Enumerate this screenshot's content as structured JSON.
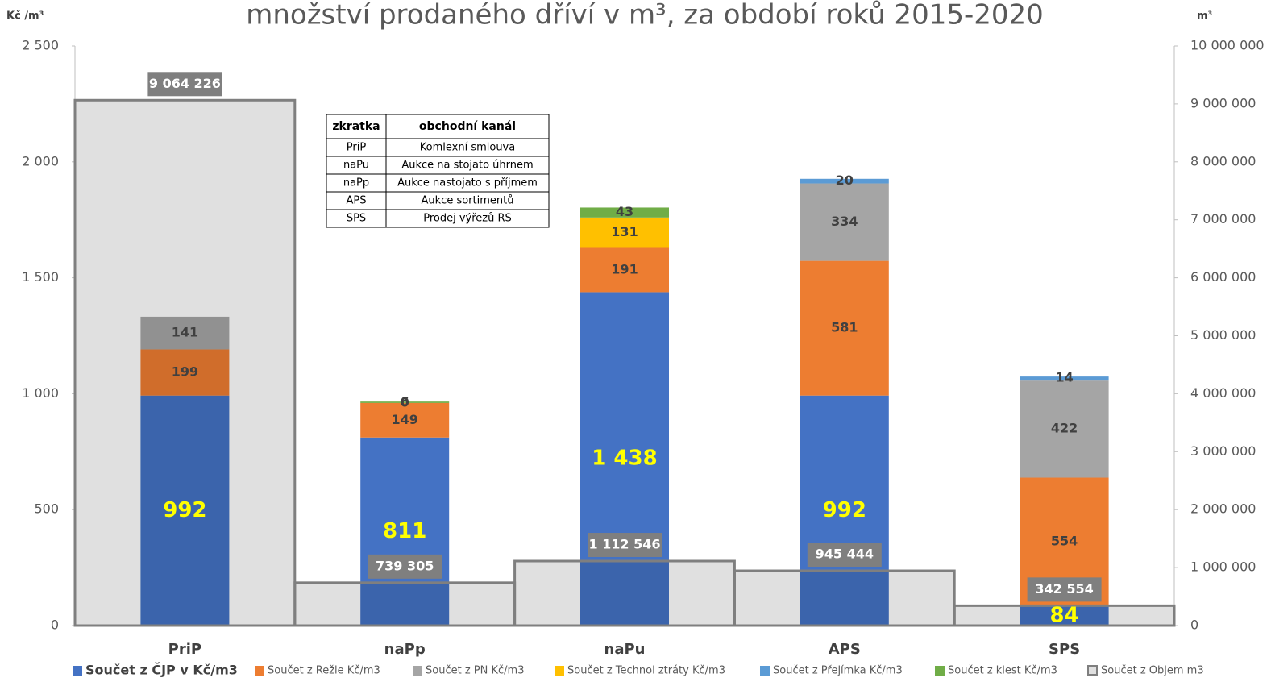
{
  "chart_data": {
    "type": "bar",
    "title": "množství prodaného dříví v m³, za období roků 2015-2020",
    "y_label": "Kč /m³",
    "y2_label": "m³",
    "categories": [
      "PriP",
      "naPp",
      "naPu",
      "APS",
      "SPS"
    ],
    "stacked": true,
    "series": [
      {
        "name": "Součet z ČJP v Kč/m3",
        "color": "#4472c4",
        "values": [
          992,
          811,
          1438,
          992,
          84
        ],
        "value_labels": [
          "992",
          "811",
          "1 438",
          "992",
          "84"
        ]
      },
      {
        "name": "Součet z Režie Kč/m3",
        "color": "#ed7d31",
        "values": [
          199,
          149,
          191,
          581,
          554
        ]
      },
      {
        "name": "Součet z PN Kč/m3",
        "color": "#a5a5a5",
        "values": [
          141,
          null,
          null,
          334,
          422
        ]
      },
      {
        "name": "Součet z Technol ztráty Kč/m3",
        "color": "#ffc000",
        "values": [
          null,
          null,
          131,
          null,
          null
        ]
      },
      {
        "name": "Součet z Přejímka Kč/m3",
        "color": "#5b9bd5",
        "values": [
          null,
          0,
          null,
          20,
          14
        ]
      },
      {
        "name": "Součet z klest Kč/m3",
        "color": "#70ad47",
        "values": [
          null,
          6,
          43,
          null,
          null
        ]
      },
      {
        "name": "Součet z Objem m3",
        "color": "#7f7f7f",
        "type": "step",
        "axis": "y2",
        "values": [
          9064226,
          739305,
          1112546,
          945444,
          342554
        ],
        "value_labels": [
          "9 064 226",
          "739 305",
          "1 112 546",
          "945 444",
          "342 554"
        ]
      }
    ],
    "ylim": [
      0,
      2500
    ],
    "yticks": [
      0,
      500,
      {
        "value": 1000,
        "label": "1 000"
      },
      {
        "value": 1500,
        "label": "1 500"
      },
      {
        "value": 2000,
        "label": "2 000"
      },
      {
        "value": 2500,
        "label": "2 500"
      }
    ],
    "y2lim": [
      0,
      10000000
    ],
    "y2ticks": [
      0,
      {
        "value": 1000000,
        "label": "1 000 000"
      },
      {
        "value": 2000000,
        "label": "2 000 000"
      },
      {
        "value": 3000000,
        "label": "3 000 000"
      },
      {
        "value": 4000000,
        "label": "4 000 000"
      },
      {
        "value": 5000000,
        "label": "5 000 000"
      },
      {
        "value": 6000000,
        "label": "6 000 000"
      },
      {
        "value": 7000000,
        "label": "7 000 000"
      },
      {
        "value": 8000000,
        "label": "8 000 000"
      },
      {
        "value": 9000000,
        "label": "9 000 000"
      },
      {
        "value": 10000000,
        "label": "10 000 000"
      }
    ],
    "legend": "bottom",
    "table": {
      "header": [
        "zkratka",
        "obchodní kanál"
      ],
      "rows": [
        [
          "PriP",
          "Komlexní smlouva"
        ],
        [
          "naPu",
          "Aukce na stojato úhrnem"
        ],
        [
          "naPp",
          "Aukce nastojato s příjmem"
        ],
        [
          "APS",
          "Aukce sortimentů"
        ],
        [
          "SPS",
          "Prodej výřezů RS"
        ]
      ]
    }
  }
}
